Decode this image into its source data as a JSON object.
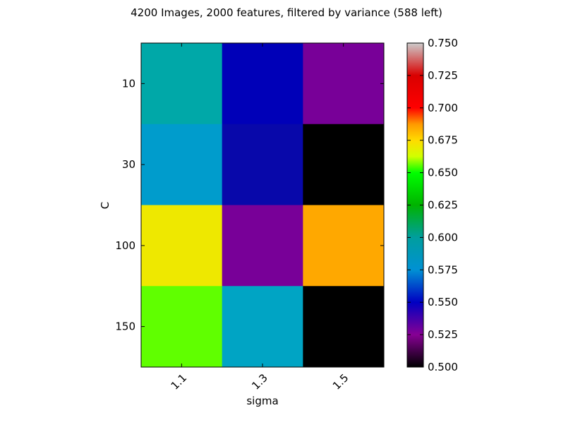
{
  "chart_data": {
    "type": "heatmap",
    "title": "4200 Images, 2000 features, filtered by variance (588 left)",
    "xlabel": "sigma",
    "ylabel": "C",
    "x_categories": [
      "1.1",
      "1.3",
      "1.5"
    ],
    "y_categories": [
      "10",
      "30",
      "100",
      "150"
    ],
    "values": [
      [
        0.595,
        0.548,
        0.522
      ],
      [
        0.575,
        0.543,
        0.5
      ],
      [
        0.672,
        0.522,
        0.69
      ],
      [
        0.652,
        0.58,
        0.5
      ]
    ],
    "colorbar": {
      "min": 0.5,
      "max": 0.75,
      "ticks": [
        "0.500",
        "0.525",
        "0.550",
        "0.575",
        "0.600",
        "0.625",
        "0.650",
        "0.675",
        "0.700",
        "0.725",
        "0.750"
      ],
      "colormap": "nipy_spectral"
    }
  },
  "colors": {
    "cells": [
      [
        "#00a8a8",
        "#0000b8",
        "#780098"
      ],
      [
        "#009ccc",
        "#0808aa",
        "#000000"
      ],
      [
        "#eee800",
        "#780098",
        "#ffa800"
      ],
      [
        "#60ff00",
        "#00a4c4",
        "#000000"
      ]
    ],
    "colormap_stops": [
      [
        "#000000",
        0.0
      ],
      [
        "#870094",
        0.1
      ],
      [
        "#0000c2",
        0.2
      ],
      [
        "#0091d4",
        0.3
      ],
      [
        "#009e9e",
        0.4
      ],
      [
        "#00b300",
        0.5
      ],
      [
        "#00ff00",
        0.6
      ],
      [
        "#d1ff00",
        0.65
      ],
      [
        "#ffdb00",
        0.7
      ],
      [
        "#ff9900",
        0.75
      ],
      [
        "#ff0000",
        0.8
      ],
      [
        "#d90000",
        0.9
      ],
      [
        "#cccccc",
        1.0
      ]
    ]
  }
}
